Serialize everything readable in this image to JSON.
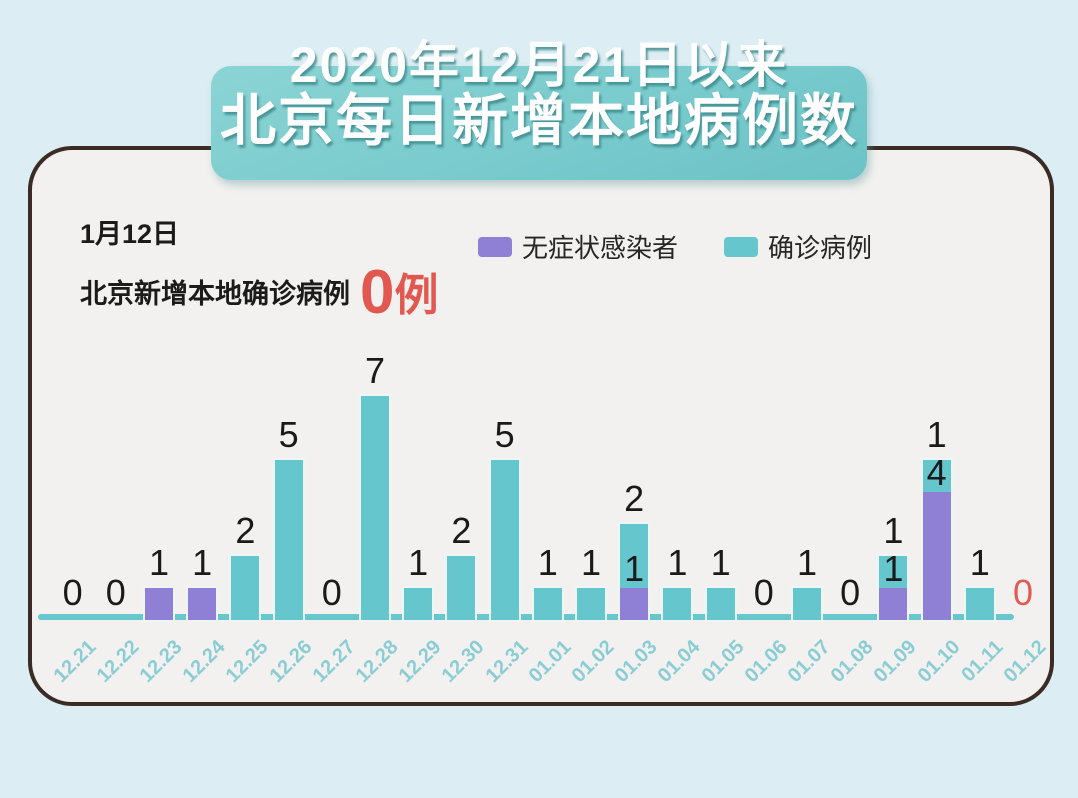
{
  "title": {
    "line1": "2020年12月21日以来",
    "line2": "北京每日新增本地病例数"
  },
  "header": {
    "date": "1月12日",
    "label": "北京新增本地确诊病例",
    "count_value": "0",
    "count_unit": "例",
    "count_color": "#e2574f"
  },
  "legend": {
    "items": [
      {
        "label": "无症状感染者",
        "color": "#8f80d6"
      },
      {
        "label": "确诊病例",
        "color": "#66c6cd"
      }
    ]
  },
  "colors": {
    "page_background": "#dceef3",
    "card_background": "#f2f1ef",
    "card_border": "#3a2b25",
    "banner_background": "#79cbcd",
    "banner_text": "#ffffff",
    "axis_line": "#68c7cd",
    "x_label": "#8acdd4",
    "value_label": "#1a1a1a",
    "highlight_red": "#df5c55"
  },
  "chart_data": {
    "type": "bar",
    "stacked": true,
    "title": "2020年12月21日以来 北京每日新增本地病例数",
    "xlabel": "",
    "ylabel": "",
    "grid": false,
    "legend_position": "top",
    "categories": [
      "12.21",
      "12.22",
      "12.23",
      "12.24",
      "12.25",
      "12.26",
      "12.27",
      "12.28",
      "12.29",
      "12.30",
      "12.31",
      "01.01",
      "01.02",
      "01.03",
      "01.04",
      "01.05",
      "01.06",
      "01.07",
      "01.08",
      "01.09",
      "01.10",
      "01.11",
      "01.12"
    ],
    "series": [
      {
        "name": "无症状感染者",
        "color": "#8f80d6",
        "values": [
          0,
          0,
          1,
          1,
          0,
          0,
          0,
          0,
          0,
          0,
          0,
          0,
          0,
          1,
          0,
          0,
          0,
          0,
          0,
          1,
          4,
          0,
          0
        ]
      },
      {
        "name": "确诊病例",
        "color": "#66c6cd",
        "values": [
          0,
          0,
          0,
          0,
          2,
          5,
          0,
          7,
          1,
          2,
          5,
          1,
          1,
          2,
          1,
          1,
          0,
          1,
          0,
          1,
          1,
          1,
          0
        ]
      }
    ],
    "zero_labels_shown": true,
    "highlight_category": "01.12",
    "highlight_color": "#df5c55",
    "ylim": [
      0,
      7
    ]
  }
}
